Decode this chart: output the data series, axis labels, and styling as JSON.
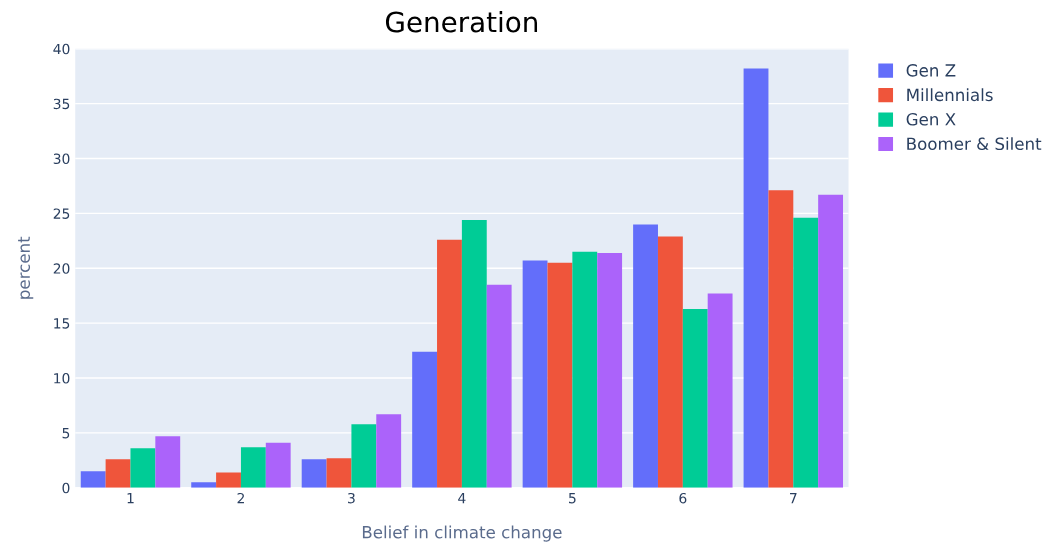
{
  "chart_data": {
    "type": "bar",
    "title": "Generation",
    "xlabel": "Belief in climate change",
    "ylabel": "percent",
    "categories": [
      "1",
      "2",
      "3",
      "4",
      "5",
      "6",
      "7"
    ],
    "series": [
      {
        "name": "Gen Z",
        "color": "#636efa",
        "values": [
          1.5,
          0.5,
          2.6,
          12.4,
          20.7,
          24.0,
          38.2
        ]
      },
      {
        "name": "Millennials",
        "color": "#ef553b",
        "values": [
          2.6,
          1.4,
          2.7,
          22.6,
          20.5,
          22.9,
          27.1
        ]
      },
      {
        "name": "Gen X",
        "color": "#00cc96",
        "values": [
          3.6,
          3.7,
          5.8,
          24.4,
          21.5,
          16.3,
          24.6
        ]
      },
      {
        "name": "Boomer & Silent",
        "color": "#ab63fa",
        "values": [
          4.7,
          4.1,
          6.7,
          18.5,
          21.4,
          17.7,
          26.7
        ]
      }
    ],
    "ylim": [
      0,
      40
    ],
    "yticks": [
      0,
      5,
      10,
      15,
      20,
      25,
      30,
      35,
      40
    ],
    "grid": "y",
    "legend": "top right"
  }
}
